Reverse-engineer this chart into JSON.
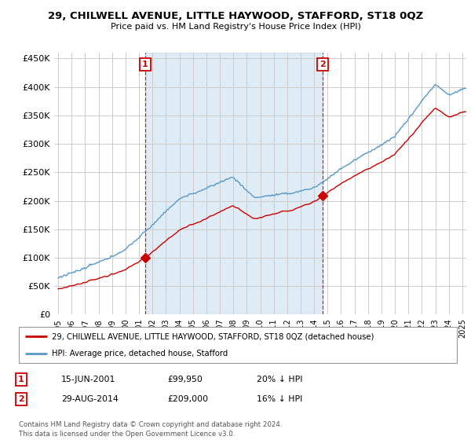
{
  "title": "29, CHILWELL AVENUE, LITTLE HAYWOOD, STAFFORD, ST18 0QZ",
  "subtitle": "Price paid vs. HM Land Registry's House Price Index (HPI)",
  "ylim": [
    0,
    460000
  ],
  "yticks": [
    0,
    50000,
    100000,
    150000,
    200000,
    250000,
    300000,
    350000,
    400000,
    450000
  ],
  "xlim_start": 1994.7,
  "xlim_end": 2025.3,
  "sale1_x": 2001.45,
  "sale1_y": 99950,
  "sale1_label": "1",
  "sale2_x": 2014.66,
  "sale2_y": 209000,
  "sale2_label": "2",
  "vline1_x": 2001.45,
  "vline2_x": 2014.66,
  "property_color": "#cc0000",
  "hpi_color": "#5599cc",
  "fill_color": "#ddeeff",
  "legend_property": "29, CHILWELL AVENUE, LITTLE HAYWOOD, STAFFORD, ST18 0QZ (detached house)",
  "legend_hpi": "HPI: Average price, detached house, Stafford",
  "note1_label": "1",
  "note1_date": "15-JUN-2001",
  "note1_price": "£99,950",
  "note1_hpi": "20% ↓ HPI",
  "note2_label": "2",
  "note2_date": "29-AUG-2014",
  "note2_price": "£209,000",
  "note2_hpi": "16% ↓ HPI",
  "footer": "Contains HM Land Registry data © Crown copyright and database right 2024.\nThis data is licensed under the Open Government Licence v3.0.",
  "background_color": "#ffffff",
  "grid_color": "#cccccc"
}
